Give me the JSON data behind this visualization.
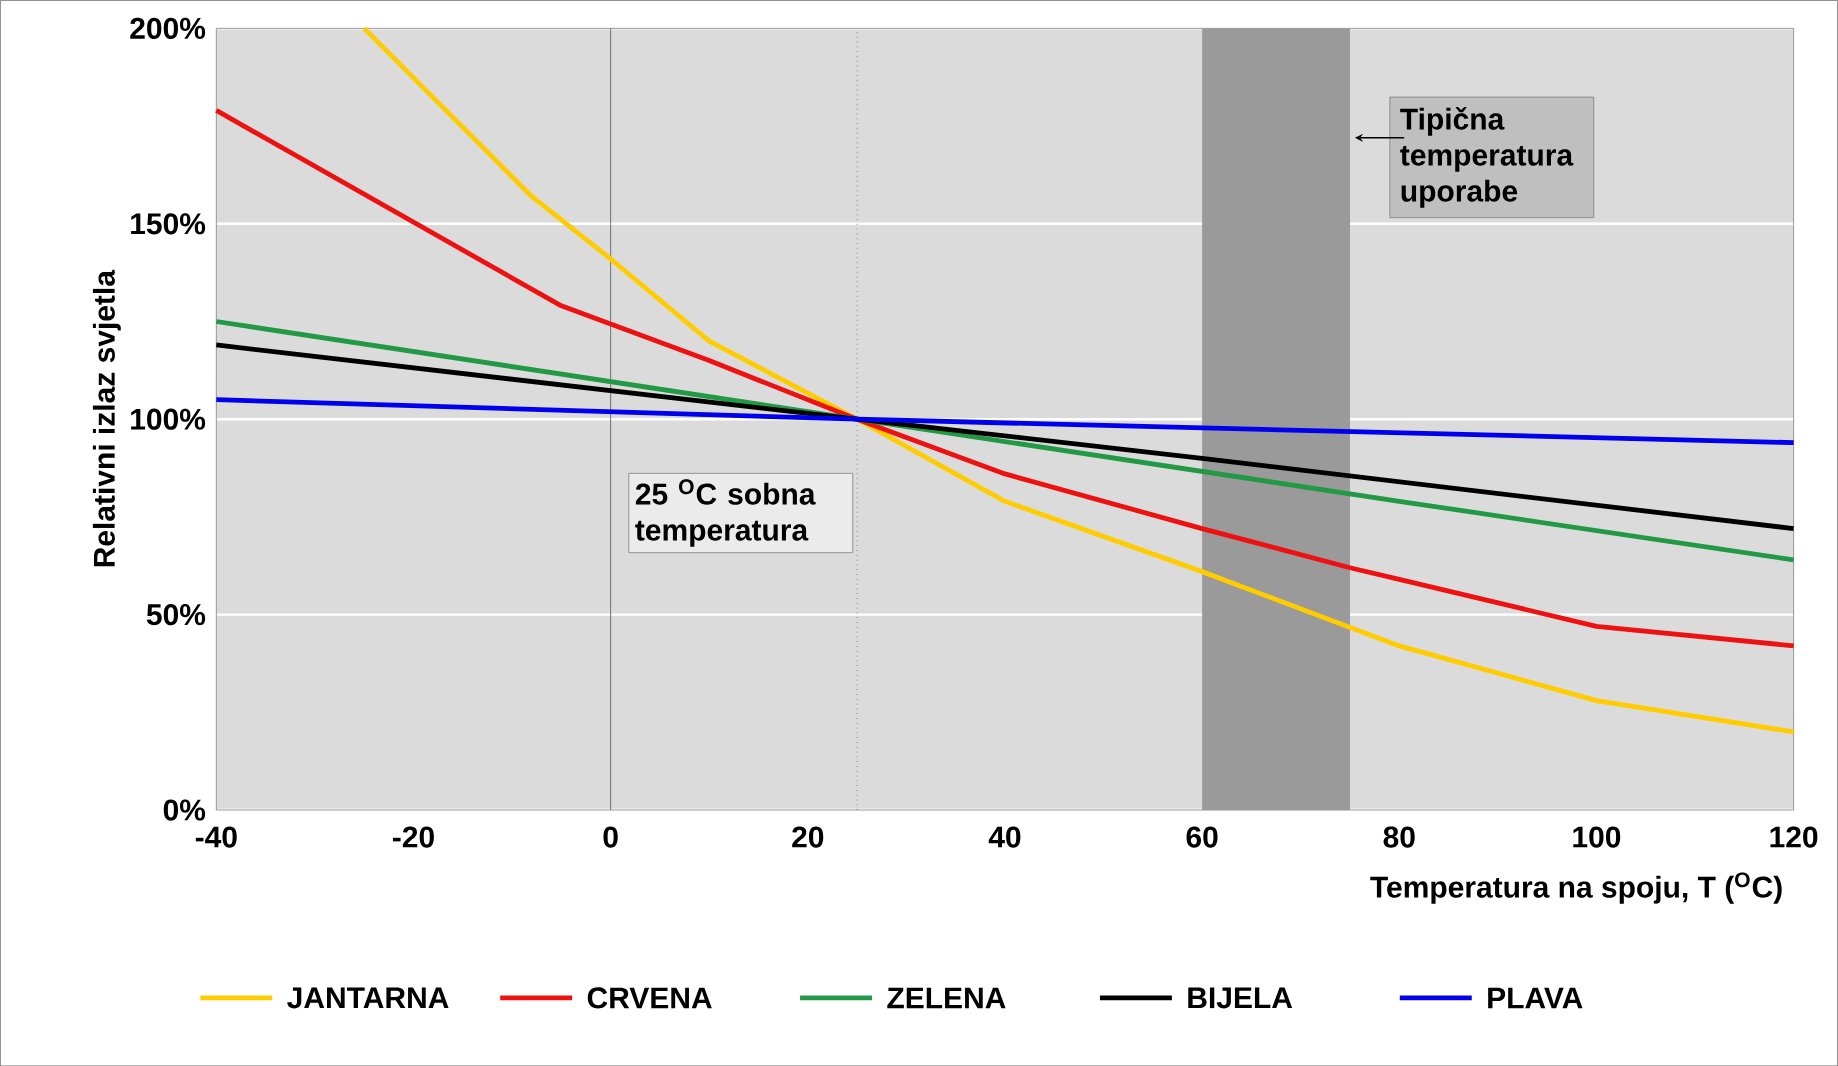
{
  "chart_data": {
    "type": "line",
    "xlabel": "Temperatura na spoju, T ($^{O}$C)",
    "ylabel": "Relativni izlaz svjetla",
    "xlim": [
      -40,
      120
    ],
    "ylim": [
      0,
      200
    ],
    "xticks": [
      -40,
      -20,
      0,
      20,
      40,
      60,
      80,
      100,
      120
    ],
    "yticks": [
      {
        "value": 0,
        "label": "0%"
      },
      {
        "value": 50,
        "label": "50%"
      },
      {
        "value": 100,
        "label": "100%"
      },
      {
        "value": 150,
        "label": "150%"
      },
      {
        "value": 200,
        "label": "200%"
      }
    ],
    "grid": "y",
    "legend": "bottom",
    "marker": "none",
    "series": [
      {
        "name": "JANTARNA",
        "color": "#ffcc00",
        "x": [
          -25,
          -8,
          0,
          10,
          25,
          40,
          60,
          80,
          100,
          120
        ],
        "values": [
          200,
          157,
          141,
          120,
          100,
          79,
          61,
          42,
          28,
          20
        ]
      },
      {
        "name": "CRVENA",
        "color": "#ee1111",
        "x": [
          -40,
          -5,
          10,
          25,
          40,
          60,
          75,
          80,
          100,
          120
        ],
        "values": [
          179,
          129,
          115,
          100,
          86,
          72,
          62,
          59,
          47,
          42
        ]
      },
      {
        "name": "ZELENA",
        "color": "#229944",
        "x": [
          -40,
          25,
          80,
          120
        ],
        "values": [
          125,
          100,
          79,
          64
        ]
      },
      {
        "name": "BIJELA",
        "color": "#000000",
        "x": [
          -40,
          25,
          60,
          120
        ],
        "values": [
          119,
          100,
          90,
          72
        ]
      },
      {
        "name": "PLAVA",
        "color": "#0000ee",
        "x": [
          -40,
          25,
          120
        ],
        "values": [
          105,
          100,
          94
        ]
      }
    ],
    "ref_lines": [
      {
        "axis": "x",
        "value": 0,
        "line_style": "solid",
        "color": "#555555"
      },
      {
        "axis": "x",
        "value": 25,
        "line_style": "dotted",
        "color": "#555555",
        "label": "25 $^{O}$C sobna temperatura"
      }
    ],
    "bands": [
      {
        "axis": "x",
        "from": 60,
        "to": 75,
        "color": "#9a9a9a",
        "label": "Tipična temperatura uporabe"
      }
    ]
  }
}
